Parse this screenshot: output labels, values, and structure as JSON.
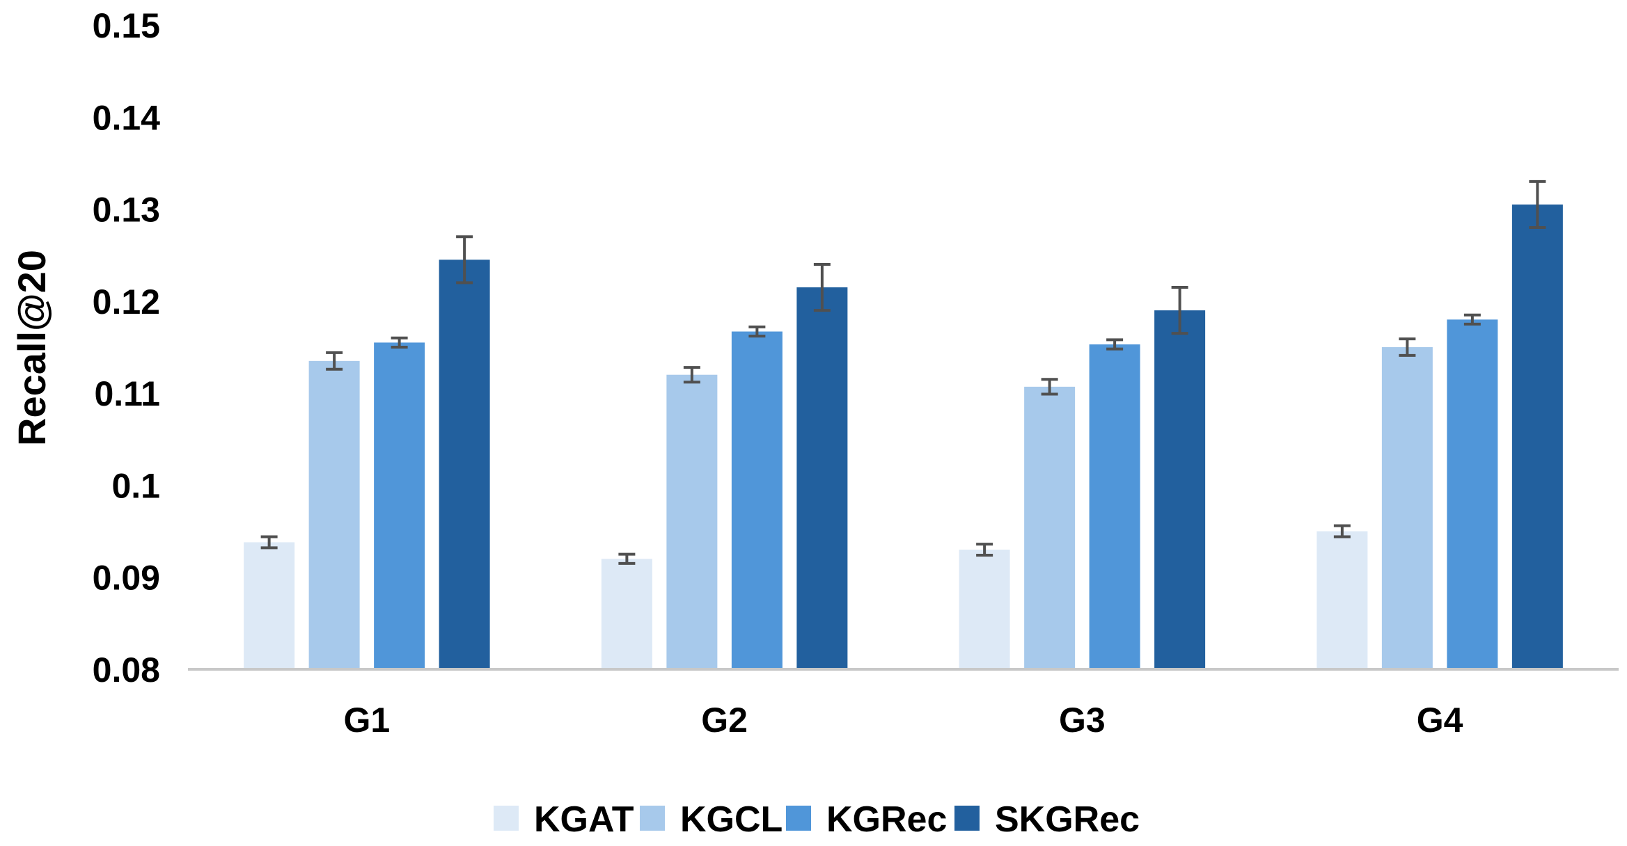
{
  "chart_data": {
    "type": "bar",
    "title": "",
    "xlabel": "",
    "ylabel": "Recall@20",
    "ylim": [
      0.08,
      0.15
    ],
    "yticks": [
      "0.08",
      "0.09",
      "0.1",
      "0.11",
      "0.12",
      "0.13",
      "0.14",
      "0.15"
    ],
    "categories": [
      "G1",
      "G2",
      "G3",
      "G4"
    ],
    "grid": false,
    "legend_position": "bottom",
    "series": [
      {
        "name": "KGAT",
        "color": "#dde9f6",
        "values": [
          0.0938,
          0.092,
          0.093,
          0.095
        ],
        "errors": [
          0.0006,
          0.0005,
          0.0006,
          0.0006
        ]
      },
      {
        "name": "KGCL",
        "color": "#a7c9eb",
        "values": [
          0.1135,
          0.112,
          0.1107,
          0.115
        ],
        "errors": [
          0.0009,
          0.0008,
          0.0008,
          0.0009
        ]
      },
      {
        "name": "KGRec",
        "color": "#5096d9",
        "values": [
          0.1155,
          0.1167,
          0.1153,
          0.118
        ],
        "errors": [
          0.0005,
          0.0005,
          0.0005,
          0.0005
        ]
      },
      {
        "name": "SKGRec",
        "color": "#22609e",
        "values": [
          0.1245,
          0.1215,
          0.119,
          0.1305
        ],
        "errors": [
          0.0025,
          0.0025,
          0.0025,
          0.0025
        ]
      }
    ]
  }
}
